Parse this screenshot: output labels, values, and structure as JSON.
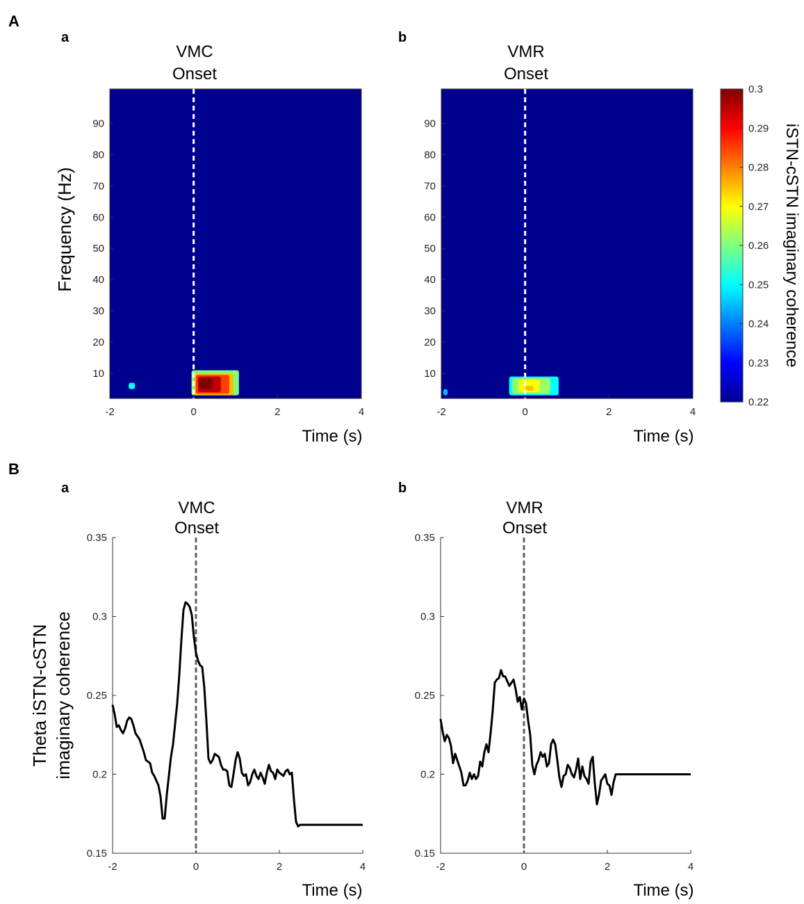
{
  "panel_labels": {
    "A": "A",
    "B": "B"
  },
  "subpanel_labels": {
    "a": "a",
    "b": "b"
  },
  "chart_data": [
    {
      "id": "Aa",
      "type": "heatmap",
      "title_line1": "VMC",
      "title_line2": "Onset",
      "xlabel": "Time (s)",
      "ylabel": "Frequency (Hz)",
      "xlim": [
        -2,
        4
      ],
      "ylim": [
        2,
        101
      ],
      "xticks": [
        -2,
        0,
        2,
        4
      ],
      "yticks": [
        10,
        20,
        30,
        40,
        50,
        60,
        70,
        80,
        90
      ],
      "xtick_labels": [
        "-2",
        "0",
        "2",
        "4"
      ],
      "ytick_labels": [
        "10",
        "20",
        "30",
        "40",
        "50",
        "60",
        "70",
        "80",
        "90"
      ],
      "clim": [
        0.22,
        0.3
      ],
      "background_value": 0.22,
      "onset_marker": 0,
      "blobs": [
        {
          "t": [
            -1.55,
            -1.4
          ],
          "f": [
            5,
            7
          ],
          "value": 0.25
        },
        {
          "t": [
            -0.05,
            1.08
          ],
          "f": [
            3,
            11
          ],
          "value": 0.26
        },
        {
          "t": [
            0.0,
            0.95
          ],
          "f": [
            3,
            10
          ],
          "value": 0.275
        },
        {
          "t": [
            0.05,
            0.85
          ],
          "f": [
            3.5,
            9.5
          ],
          "value": 0.285
        },
        {
          "t": [
            0.1,
            0.65
          ],
          "f": [
            4,
            9
          ],
          "value": 0.295
        },
        {
          "t": [
            0.12,
            0.45
          ],
          "f": [
            5,
            8.5
          ],
          "value": 0.3
        }
      ]
    },
    {
      "id": "Ab",
      "type": "heatmap",
      "title_line1": "VMR",
      "title_line2": "Onset",
      "xlabel": "Time (s)",
      "ylabel": "",
      "xlim": [
        -2,
        4
      ],
      "ylim": [
        2,
        101
      ],
      "xticks": [
        -2,
        0,
        2,
        4
      ],
      "yticks": [
        10,
        20,
        30,
        40,
        50,
        60,
        70,
        80,
        90
      ],
      "xtick_labels": [
        "-2",
        "0",
        "2",
        "4"
      ],
      "ytick_labels": [
        "10",
        "20",
        "30",
        "40",
        "50",
        "60",
        "70",
        "80",
        "90"
      ],
      "clim": [
        0.22,
        0.3
      ],
      "background_value": 0.22,
      "onset_marker": 0,
      "blobs": [
        {
          "t": [
            -1.95,
            -1.85
          ],
          "f": [
            3,
            5
          ],
          "value": 0.245
        },
        {
          "t": [
            -0.38,
            0.8
          ],
          "f": [
            3,
            9
          ],
          "value": 0.25
        },
        {
          "t": [
            -0.3,
            0.6
          ],
          "f": [
            3.5,
            8.5
          ],
          "value": 0.262
        },
        {
          "t": [
            -0.15,
            0.35
          ],
          "f": [
            4,
            8
          ],
          "value": 0.27
        },
        {
          "t": [
            0.0,
            0.2
          ],
          "f": [
            4.5,
            6
          ],
          "value": 0.275
        }
      ]
    },
    {
      "id": "Ba",
      "type": "line",
      "title_line1": "VMC",
      "title_line2": "Onset",
      "xlabel": "Time (s)",
      "ylabel_line1": "Theta iSTN-cSTN",
      "ylabel_line2": "imaginary coherence",
      "xlim": [
        -2,
        4
      ],
      "ylim": [
        0.15,
        0.35
      ],
      "xticks": [
        -2,
        0,
        2,
        4
      ],
      "yticks": [
        0.15,
        0.2,
        0.25,
        0.3,
        0.35
      ],
      "xtick_labels": [
        "-2",
        "0",
        "2",
        "4"
      ],
      "ytick_labels": [
        "0.15",
        "0.2",
        "0.25",
        "0.3",
        "0.35"
      ],
      "onset_marker": 0,
      "x": [
        -2,
        -1.95,
        -1.9,
        -1.85,
        -1.8,
        -1.75,
        -1.7,
        -1.65,
        -1.6,
        -1.55,
        -1.5,
        -1.45,
        -1.4,
        -1.35,
        -1.3,
        -1.25,
        -1.2,
        -1.15,
        -1.1,
        -1.05,
        -1,
        -0.95,
        -0.9,
        -0.85,
        -0.8,
        -0.75,
        -0.7,
        -0.65,
        -0.6,
        -0.55,
        -0.5,
        -0.45,
        -0.4,
        -0.35,
        -0.3,
        -0.25,
        -0.2,
        -0.15,
        -0.1,
        -0.05,
        0,
        0.05,
        0.1,
        0.15,
        0.2,
        0.25,
        0.3,
        0.35,
        0.4,
        0.45,
        0.5,
        0.55,
        0.6,
        0.65,
        0.7,
        0.75,
        0.8,
        0.85,
        0.9,
        0.95,
        1,
        1.05,
        1.1,
        1.15,
        1.2,
        1.25,
        1.3,
        1.35,
        1.4,
        1.45,
        1.5,
        1.55,
        1.6,
        1.65,
        1.7,
        1.75,
        1.8,
        1.85,
        1.9,
        1.95,
        2,
        2.05,
        2.1,
        2.15,
        2.2,
        2.25,
        2.3,
        2.35,
        2.4,
        2.45,
        2.5,
        2.55,
        2.6,
        2.65,
        2.7,
        2.75,
        2.8,
        2.85,
        2.9,
        2.95,
        3,
        3.05,
        3.1,
        3.15,
        3.2,
        3.25,
        3.3,
        3.35,
        3.4,
        3.45,
        3.5,
        3.55,
        3.6,
        3.65,
        3.7,
        3.75,
        3.8,
        3.85,
        3.9,
        3.95,
        4
      ],
      "y": [
        0.244,
        0.238,
        0.23,
        0.231,
        0.228,
        0.226,
        0.229,
        0.234,
        0.236,
        0.235,
        0.231,
        0.226,
        0.224,
        0.222,
        0.218,
        0.214,
        0.209,
        0.208,
        0.207,
        0.201,
        0.199,
        0.196,
        0.193,
        0.186,
        0.172,
        0.172,
        0.187,
        0.199,
        0.211,
        0.219,
        0.232,
        0.245,
        0.263,
        0.285,
        0.304,
        0.309,
        0.308,
        0.306,
        0.301,
        0.287,
        0.277,
        0.272,
        0.269,
        0.268,
        0.255,
        0.234,
        0.21,
        0.207,
        0.209,
        0.213,
        0.212,
        0.211,
        0.206,
        0.203,
        0.203,
        0.202,
        0.193,
        0.192,
        0.2,
        0.209,
        0.214,
        0.21,
        0.201,
        0.199,
        0.2,
        0.193,
        0.195,
        0.2,
        0.203,
        0.199,
        0.197,
        0.201,
        0.198,
        0.194,
        0.201,
        0.206,
        0.202,
        0.201,
        0.197,
        0.203,
        0.201,
        0.2,
        0.199,
        0.202,
        0.203,
        0.2,
        0.201,
        0.184,
        0.17,
        0.167,
        0.168,
        0.168,
        0.168,
        0.168,
        0.168,
        0.168,
        0.168,
        0.168,
        0.168,
        0.168,
        0.168,
        0.168,
        0.168,
        0.168,
        0.168,
        0.168,
        0.168,
        0.168,
        0.168,
        0.168,
        0.168,
        0.168,
        0.168,
        0.168,
        0.168,
        0.168,
        0.168,
        0.168,
        0.168,
        0.168,
        0.168
      ]
    },
    {
      "id": "Bb",
      "type": "line",
      "title_line1": "VMR",
      "title_line2": "Onset",
      "xlabel": "Time (s)",
      "xlim": [
        -2,
        4
      ],
      "ylim": [
        0.15,
        0.35
      ],
      "xticks": [
        -2,
        0,
        2,
        4
      ],
      "yticks": [
        0.15,
        0.2,
        0.25,
        0.3,
        0.35
      ],
      "xtick_labels": [
        "-2",
        "0",
        "2",
        "4"
      ],
      "ytick_labels": [
        "0.15",
        "0.2",
        "0.25",
        "0.3",
        "0.35"
      ],
      "onset_marker": 0,
      "x": [
        -2,
        -1.95,
        -1.9,
        -1.85,
        -1.8,
        -1.75,
        -1.7,
        -1.65,
        -1.6,
        -1.55,
        -1.5,
        -1.45,
        -1.4,
        -1.35,
        -1.3,
        -1.25,
        -1.2,
        -1.15,
        -1.1,
        -1.05,
        -1,
        -0.95,
        -0.9,
        -0.85,
        -0.8,
        -0.75,
        -0.7,
        -0.65,
        -0.6,
        -0.55,
        -0.5,
        -0.45,
        -0.4,
        -0.35,
        -0.3,
        -0.25,
        -0.2,
        -0.15,
        -0.1,
        -0.05,
        0,
        0.05,
        0.1,
        0.15,
        0.2,
        0.25,
        0.3,
        0.35,
        0.4,
        0.45,
        0.5,
        0.55,
        0.6,
        0.65,
        0.7,
        0.75,
        0.8,
        0.85,
        0.9,
        0.95,
        1,
        1.05,
        1.1,
        1.15,
        1.2,
        1.25,
        1.3,
        1.35,
        1.4,
        1.45,
        1.5,
        1.55,
        1.6,
        1.65,
        1.7,
        1.75,
        1.8,
        1.85,
        1.9,
        1.95,
        2,
        2.05,
        2.1,
        2.15,
        2.2,
        2.25,
        2.3,
        2.35,
        2.4,
        2.45,
        2.5,
        2.55,
        2.6,
        2.65,
        2.7,
        2.75,
        2.8,
        2.85,
        2.9,
        2.95,
        3,
        3.05,
        3.1,
        3.15,
        3.2,
        3.25,
        3.3,
        3.35,
        3.4,
        3.45,
        3.5,
        3.55,
        3.6,
        3.65,
        3.7,
        3.75,
        3.8,
        3.85,
        3.9,
        3.95,
        4
      ],
      "y": [
        0.235,
        0.227,
        0.221,
        0.225,
        0.223,
        0.218,
        0.207,
        0.213,
        0.209,
        0.205,
        0.201,
        0.193,
        0.193,
        0.196,
        0.201,
        0.197,
        0.2,
        0.197,
        0.199,
        0.208,
        0.205,
        0.214,
        0.219,
        0.214,
        0.226,
        0.24,
        0.258,
        0.26,
        0.261,
        0.266,
        0.262,
        0.262,
        0.259,
        0.256,
        0.258,
        0.26,
        0.254,
        0.246,
        0.249,
        0.241,
        0.248,
        0.245,
        0.234,
        0.225,
        0.206,
        0.2,
        0.206,
        0.209,
        0.214,
        0.211,
        0.213,
        0.205,
        0.207,
        0.219,
        0.222,
        0.219,
        0.209,
        0.198,
        0.192,
        0.199,
        0.2,
        0.206,
        0.204,
        0.2,
        0.198,
        0.203,
        0.21,
        0.197,
        0.205,
        0.199,
        0.197,
        0.194,
        0.208,
        0.211,
        0.194,
        0.181,
        0.187,
        0.196,
        0.198,
        0.2,
        0.194,
        0.193,
        0.187,
        0.195,
        0.2,
        0.2,
        0.2,
        0.2,
        0.2,
        0.2,
        0.2,
        0.2,
        0.2,
        0.2,
        0.2,
        0.2,
        0.2,
        0.2,
        0.2,
        0.2,
        0.2,
        0.2,
        0.2,
        0.2,
        0.2,
        0.2,
        0.2,
        0.2,
        0.2,
        0.2,
        0.2,
        0.2,
        0.2,
        0.2,
        0.2,
        0.2,
        0.2,
        0.2,
        0.2,
        0.2,
        0.2
      ]
    }
  ],
  "colorbar": {
    "label": "iSTN-cSTN imaginary coherence",
    "ticks": [
      0.3,
      0.29,
      0.28,
      0.27,
      0.26,
      0.25,
      0.24,
      0.23,
      0.22
    ],
    "tick_labels": [
      "0.3",
      "0.29",
      "0.28",
      "0.27",
      "0.26",
      "0.25",
      "0.24",
      "0.23",
      "0.22"
    ],
    "range": [
      0.22,
      0.3
    ]
  }
}
